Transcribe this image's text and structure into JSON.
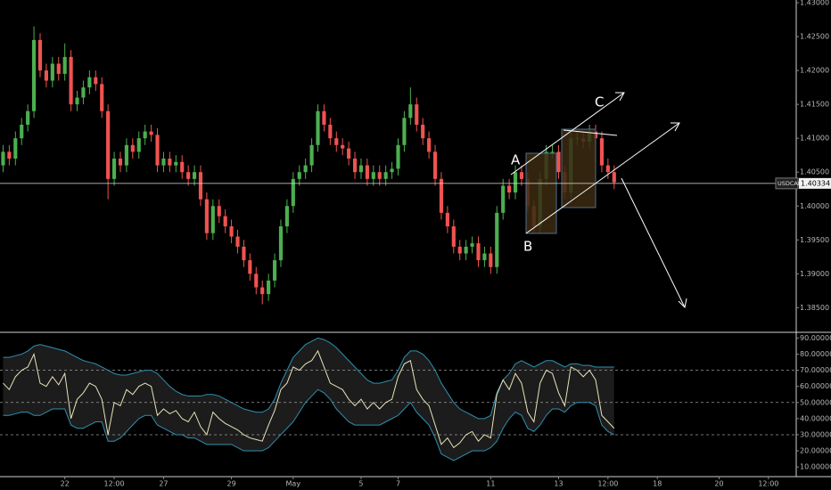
{
  "chart_data": [
    {
      "type": "candlestick",
      "symbol": "USDCAD",
      "last_price": 1.40334,
      "up_color": "#4caf50",
      "down_color": "#ef5350",
      "grid": false,
      "xlim": [
        -0.5,
        128.5
      ],
      "ylim": [
        1.3815,
        1.4304
      ],
      "yticks": [
        {
          "value": 1.43,
          "label": "1.43000"
        },
        {
          "value": 1.425,
          "label": "1.42500"
        },
        {
          "value": 1.42,
          "label": "1.42000"
        },
        {
          "value": 1.415,
          "label": "1.41500"
        },
        {
          "value": 1.41,
          "label": "1.41000"
        },
        {
          "value": 1.405,
          "label": "1.40500"
        },
        {
          "value": 1.4,
          "label": "1.40000"
        },
        {
          "value": 1.395,
          "label": "1.39500"
        },
        {
          "value": 1.39,
          "label": "1.39000"
        },
        {
          "value": 1.385,
          "label": "1.38500"
        }
      ],
      "annotations": [
        "A",
        "B",
        "C"
      ],
      "open": [
        1.406,
        1.408,
        1.407,
        1.41,
        1.412,
        1.414,
        1.4245,
        1.42,
        1.4185,
        1.421,
        1.4195,
        1.422,
        1.415,
        1.416,
        1.4175,
        1.419,
        1.418,
        1.414,
        1.404,
        1.407,
        1.406,
        1.409,
        1.408,
        1.41,
        1.411,
        1.4105,
        1.406,
        1.407,
        1.406,
        1.4065,
        1.405,
        1.404,
        1.405,
        1.401,
        1.396,
        1.4,
        1.3985,
        1.397,
        1.3955,
        1.394,
        1.392,
        1.39,
        1.388,
        1.387,
        1.389,
        1.392,
        1.397,
        1.4,
        1.404,
        1.405,
        1.406,
        1.409,
        1.414,
        1.412,
        1.41,
        1.409,
        1.4085,
        1.407,
        1.405,
        1.406,
        1.404,
        1.405,
        1.404,
        1.405,
        1.4055,
        1.409,
        1.413,
        1.415,
        1.412,
        1.41,
        1.408,
        1.404,
        1.399,
        1.397,
        1.394,
        1.393,
        1.394,
        1.3945,
        1.392,
        1.393,
        1.391,
        1.399,
        1.403,
        1.402,
        1.405,
        1.404,
        1.4,
        1.397,
        1.404,
        1.408,
        1.408,
        1.405,
        1.402,
        1.41,
        1.41,
        1.4095,
        1.411,
        1.41,
        1.406,
        1.405
      ],
      "high": [
        1.409,
        1.409,
        1.411,
        1.413,
        1.415,
        1.4265,
        1.4255,
        1.421,
        1.422,
        1.422,
        1.424,
        1.423,
        1.417,
        1.4185,
        1.42,
        1.42,
        1.419,
        1.415,
        1.408,
        1.408,
        1.41,
        1.41,
        1.411,
        1.412,
        1.412,
        1.4115,
        1.408,
        1.408,
        1.4075,
        1.4075,
        1.406,
        1.406,
        1.406,
        1.402,
        1.401,
        1.401,
        1.3995,
        1.398,
        1.3965,
        1.395,
        1.393,
        1.391,
        1.389,
        1.39,
        1.393,
        1.398,
        1.401,
        1.405,
        1.406,
        1.407,
        1.41,
        1.415,
        1.415,
        1.413,
        1.411,
        1.41,
        1.4095,
        1.408,
        1.407,
        1.407,
        1.406,
        1.406,
        1.406,
        1.4065,
        1.41,
        1.414,
        1.4175,
        1.416,
        1.413,
        1.411,
        1.409,
        1.405,
        1.4,
        1.398,
        1.395,
        1.395,
        1.3955,
        1.3955,
        1.394,
        1.394,
        1.4,
        1.404,
        1.404,
        1.406,
        1.406,
        1.405,
        1.401,
        1.405,
        1.409,
        1.409,
        1.409,
        1.406,
        1.411,
        1.411,
        1.411,
        1.412,
        1.412,
        1.411,
        1.407,
        1.406
      ],
      "low": [
        1.405,
        1.406,
        1.406,
        1.409,
        1.411,
        1.413,
        1.419,
        1.4175,
        1.4175,
        1.4185,
        1.4185,
        1.414,
        1.414,
        1.415,
        1.4165,
        1.417,
        1.413,
        1.401,
        1.403,
        1.405,
        1.405,
        1.407,
        1.407,
        1.409,
        1.4095,
        1.405,
        1.405,
        1.405,
        1.405,
        1.404,
        1.403,
        1.403,
        1.4,
        1.395,
        1.395,
        1.3975,
        1.396,
        1.3945,
        1.393,
        1.391,
        1.389,
        1.387,
        1.3855,
        1.386,
        1.388,
        1.391,
        1.396,
        1.399,
        1.403,
        1.404,
        1.405,
        1.408,
        1.411,
        1.409,
        1.408,
        1.4075,
        1.406,
        1.404,
        1.404,
        1.403,
        1.403,
        1.403,
        1.403,
        1.404,
        1.4045,
        1.408,
        1.412,
        1.411,
        1.409,
        1.407,
        1.403,
        1.398,
        1.396,
        1.393,
        1.392,
        1.392,
        1.393,
        1.391,
        1.391,
        1.39,
        1.39,
        1.398,
        1.401,
        1.401,
        1.403,
        1.399,
        1.396,
        1.396,
        1.403,
        1.407,
        1.404,
        1.401,
        1.401,
        1.409,
        1.4085,
        1.4085,
        1.409,
        1.405,
        1.404,
        1.4025
      ],
      "close": [
        1.408,
        1.407,
        1.41,
        1.412,
        1.414,
        1.4245,
        1.42,
        1.4185,
        1.421,
        1.4195,
        1.422,
        1.415,
        1.416,
        1.4175,
        1.419,
        1.418,
        1.414,
        1.404,
        1.407,
        1.406,
        1.409,
        1.408,
        1.41,
        1.411,
        1.4105,
        1.406,
        1.407,
        1.406,
        1.4065,
        1.405,
        1.404,
        1.405,
        1.401,
        1.396,
        1.4,
        1.3985,
        1.397,
        1.3955,
        1.394,
        1.392,
        1.39,
        1.388,
        1.387,
        1.389,
        1.392,
        1.397,
        1.4,
        1.404,
        1.405,
        1.406,
        1.409,
        1.414,
        1.412,
        1.41,
        1.409,
        1.4085,
        1.407,
        1.405,
        1.406,
        1.404,
        1.405,
        1.404,
        1.405,
        1.4055,
        1.409,
        1.413,
        1.415,
        1.412,
        1.41,
        1.408,
        1.404,
        1.399,
        1.397,
        1.394,
        1.393,
        1.394,
        1.3945,
        1.392,
        1.393,
        1.391,
        1.399,
        1.403,
        1.402,
        1.405,
        1.404,
        1.4,
        1.397,
        1.404,
        1.408,
        1.408,
        1.405,
        1.402,
        1.41,
        1.41,
        1.4095,
        1.411,
        1.41,
        1.406,
        1.405,
        1.4035
      ]
    },
    {
      "type": "line",
      "grid": false,
      "xlim": [
        -0.5,
        128.5
      ],
      "ylim": [
        4,
        93
      ],
      "xticks": [
        {
          "value": 10,
          "label": "22"
        },
        {
          "value": 18,
          "label": "12:00"
        },
        {
          "value": 26,
          "label": "27"
        },
        {
          "value": 37,
          "label": "29"
        },
        {
          "value": 47,
          "label": "May"
        },
        {
          "value": 58,
          "label": "5"
        },
        {
          "value": 64,
          "label": "7"
        },
        {
          "value": 79,
          "label": "11"
        },
        {
          "value": 90,
          "label": "13"
        },
        {
          "value": 98,
          "label": "12:00"
        },
        {
          "value": 106,
          "label": "18"
        },
        {
          "value": 116,
          "label": "20"
        },
        {
          "value": 124,
          "label": "12:00"
        }
      ],
      "yticks": [
        {
          "value": 90,
          "label": "90.00000"
        },
        {
          "value": 80,
          "label": "80.00000"
        },
        {
          "value": 70,
          "label": "70.00000"
        },
        {
          "value": 60,
          "label": "60.00000"
        },
        {
          "value": 50,
          "label": "50.00000"
        },
        {
          "value": 40,
          "label": "40.00000"
        },
        {
          "value": 30,
          "label": "30.00000"
        },
        {
          "value": 20,
          "label": "20.00000"
        },
        {
          "value": 10,
          "label": "10.00000"
        }
      ],
      "levels": [
        70,
        50,
        30
      ],
      "band_fill": "#1c1c1c",
      "series": [
        {
          "color": "#2f8fb0",
          "values": [
            78,
            78,
            79,
            80,
            82,
            85,
            86,
            85,
            84,
            83,
            82,
            80,
            78,
            76,
            75,
            74,
            72,
            70,
            68,
            67,
            67,
            68,
            69,
            70,
            70,
            68,
            64,
            60,
            57,
            55,
            54,
            54,
            54,
            55,
            55,
            54,
            52,
            50,
            48,
            46,
            45,
            44,
            44,
            46,
            52,
            62,
            70,
            78,
            82,
            86,
            88,
            90,
            89,
            87,
            84,
            80,
            76,
            72,
            68,
            64,
            62,
            62,
            63,
            64,
            70,
            78,
            82,
            82,
            80,
            76,
            70,
            62,
            56,
            50,
            46,
            44,
            42,
            40,
            40,
            42,
            56,
            64,
            68,
            74,
            76,
            74,
            72,
            74,
            76,
            76,
            74,
            72,
            74,
            74,
            73,
            73,
            72,
            72,
            72,
            72
          ]
        },
        {
          "color": "#2f8fb0",
          "values": [
            42,
            42,
            43,
            44,
            44,
            42,
            42,
            44,
            46,
            46,
            46,
            36,
            34,
            34,
            36,
            38,
            38,
            26,
            26,
            28,
            32,
            36,
            40,
            42,
            42,
            36,
            34,
            32,
            30,
            30,
            28,
            28,
            26,
            24,
            24,
            24,
            24,
            24,
            22,
            20,
            20,
            20,
            20,
            22,
            26,
            30,
            34,
            38,
            44,
            50,
            54,
            58,
            56,
            52,
            46,
            42,
            38,
            36,
            36,
            36,
            36,
            36,
            38,
            40,
            42,
            46,
            50,
            44,
            40,
            36,
            28,
            18,
            16,
            14,
            16,
            18,
            20,
            20,
            20,
            22,
            26,
            34,
            40,
            44,
            42,
            34,
            32,
            36,
            42,
            46,
            46,
            44,
            48,
            50,
            50,
            50,
            48,
            36,
            32,
            30
          ]
        },
        {
          "color": "#e8e4b8",
          "values": [
            62,
            58,
            66,
            70,
            72,
            80,
            62,
            60,
            66,
            61,
            68,
            40,
            52,
            56,
            62,
            60,
            52,
            30,
            50,
            48,
            58,
            55,
            60,
            62,
            60,
            42,
            46,
            43,
            45,
            40,
            38,
            44,
            35,
            30,
            44,
            40,
            37,
            35,
            33,
            30,
            28,
            27,
            26,
            36,
            45,
            58,
            62,
            72,
            70,
            74,
            76,
            82,
            72,
            62,
            60,
            58,
            52,
            48,
            52,
            46,
            50,
            46,
            50,
            52,
            66,
            74,
            76,
            58,
            52,
            48,
            36,
            24,
            28,
            22,
            25,
            30,
            32,
            26,
            30,
            28,
            55,
            64,
            58,
            68,
            62,
            44,
            38,
            62,
            70,
            68,
            56,
            48,
            72,
            70,
            66,
            70,
            64,
            42,
            38,
            34
          ]
        }
      ]
    }
  ]
}
